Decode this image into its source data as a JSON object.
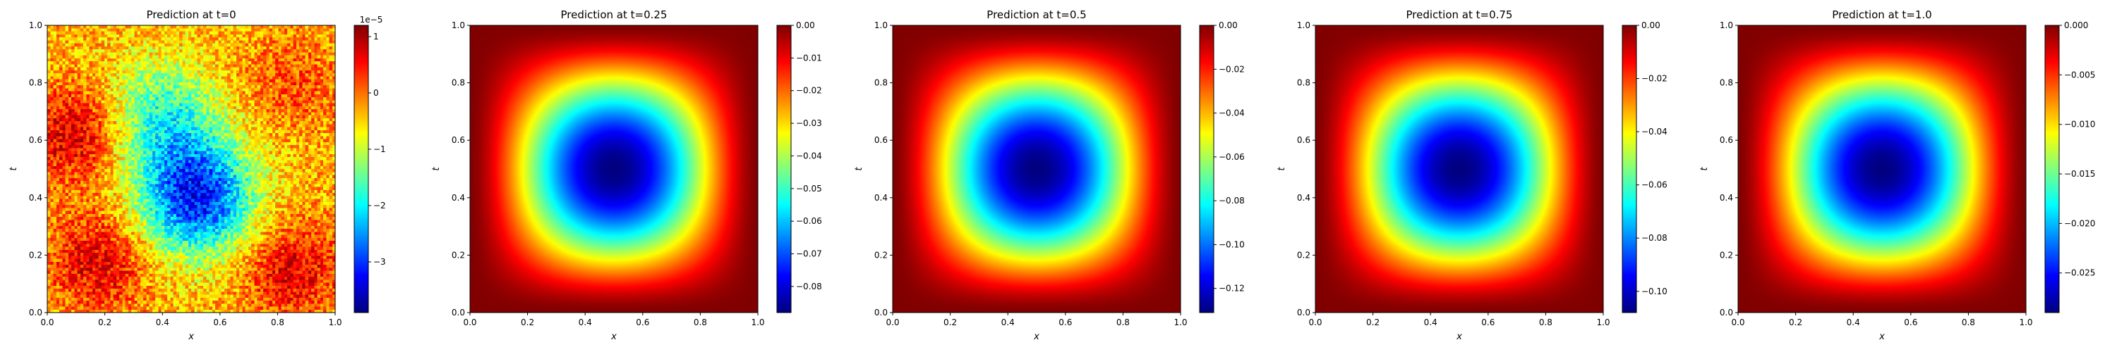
{
  "chart_data": [
    {
      "type": "heatmap",
      "title": "Prediction at t=0",
      "xlabel": "x",
      "ylabel": "t",
      "xlim": [
        0,
        1
      ],
      "ylim": [
        0,
        1
      ],
      "x_ticks": [
        "0.0",
        "0.2",
        "0.4",
        "0.6",
        "0.8",
        "1.0"
      ],
      "y_ticks": [
        "0.0",
        "0.2",
        "0.4",
        "0.6",
        "0.8",
        "1.0"
      ],
      "colormap": "jet",
      "field": "noisy",
      "color_range": [
        -3.9e-05,
        1.2e-05
      ],
      "colorbar": {
        "offset_text": "1e−5",
        "ticks": [
          1,
          0,
          -1,
          -2,
          -3
        ],
        "tick_labels": [
          "1",
          "0",
          "−1",
          "−2",
          "−3"
        ],
        "scale": 1e-05
      }
    },
    {
      "type": "heatmap",
      "title": "Prediction at t=0.25",
      "xlabel": "x",
      "ylabel": "t",
      "xlim": [
        0,
        1
      ],
      "ylim": [
        0,
        1
      ],
      "x_ticks": [
        "0.0",
        "0.2",
        "0.4",
        "0.6",
        "0.8",
        "1.0"
      ],
      "y_ticks": [
        "0.0",
        "0.2",
        "0.4",
        "0.6",
        "0.8",
        "1.0"
      ],
      "colormap": "jet",
      "field": "well",
      "color_range": [
        -0.088,
        0.0
      ],
      "colorbar": {
        "ticks": [
          0.0,
          -0.01,
          -0.02,
          -0.03,
          -0.04,
          -0.05,
          -0.06,
          -0.07,
          -0.08
        ],
        "tick_labels": [
          "0.00",
          "−0.01",
          "−0.02",
          "−0.03",
          "−0.04",
          "−0.05",
          "−0.06",
          "−0.07",
          "−0.08"
        ]
      }
    },
    {
      "type": "heatmap",
      "title": "Prediction at t=0.5",
      "xlabel": "x",
      "ylabel": "t",
      "xlim": [
        0,
        1
      ],
      "ylim": [
        0,
        1
      ],
      "x_ticks": [
        "0.0",
        "0.2",
        "0.4",
        "0.6",
        "0.8",
        "1.0"
      ],
      "y_ticks": [
        "0.0",
        "0.2",
        "0.4",
        "0.6",
        "0.8",
        "1.0"
      ],
      "colormap": "jet",
      "field": "well",
      "color_range": [
        -0.131,
        0.0
      ],
      "colorbar": {
        "ticks": [
          0.0,
          -0.02,
          -0.04,
          -0.06,
          -0.08,
          -0.1,
          -0.12
        ],
        "tick_labels": [
          "0.00",
          "−0.02",
          "−0.04",
          "−0.06",
          "−0.08",
          "−0.10",
          "−0.12"
        ]
      }
    },
    {
      "type": "heatmap",
      "title": "Prediction at t=0.75",
      "xlabel": "x",
      "ylabel": "t",
      "xlim": [
        0,
        1
      ],
      "ylim": [
        0,
        1
      ],
      "x_ticks": [
        "0.0",
        "0.2",
        "0.4",
        "0.6",
        "0.8",
        "1.0"
      ],
      "y_ticks": [
        "0.0",
        "0.2",
        "0.4",
        "0.6",
        "0.8",
        "1.0"
      ],
      "colormap": "jet",
      "field": "well",
      "color_range": [
        -0.108,
        0.0
      ],
      "colorbar": {
        "ticks": [
          0.0,
          -0.02,
          -0.04,
          -0.06,
          -0.08,
          -0.1
        ],
        "tick_labels": [
          "0.00",
          "−0.02",
          "−0.04",
          "−0.06",
          "−0.08",
          "−0.10"
        ]
      }
    },
    {
      "type": "heatmap",
      "title": "Prediction at t=1.0",
      "xlabel": "x",
      "ylabel": "t",
      "xlim": [
        0,
        1
      ],
      "ylim": [
        0,
        1
      ],
      "x_ticks": [
        "0.0",
        "0.2",
        "0.4",
        "0.6",
        "0.8",
        "1.0"
      ],
      "y_ticks": [
        "0.0",
        "0.2",
        "0.4",
        "0.6",
        "0.8",
        "1.0"
      ],
      "colormap": "jet",
      "field": "well",
      "color_range": [
        -0.029,
        0.0
      ],
      "colorbar": {
        "ticks": [
          0.0,
          -0.005,
          -0.01,
          -0.015,
          -0.02,
          -0.025
        ],
        "tick_labels": [
          "0.000",
          "−0.005",
          "−0.010",
          "−0.015",
          "−0.020",
          "−0.025"
        ]
      }
    }
  ]
}
